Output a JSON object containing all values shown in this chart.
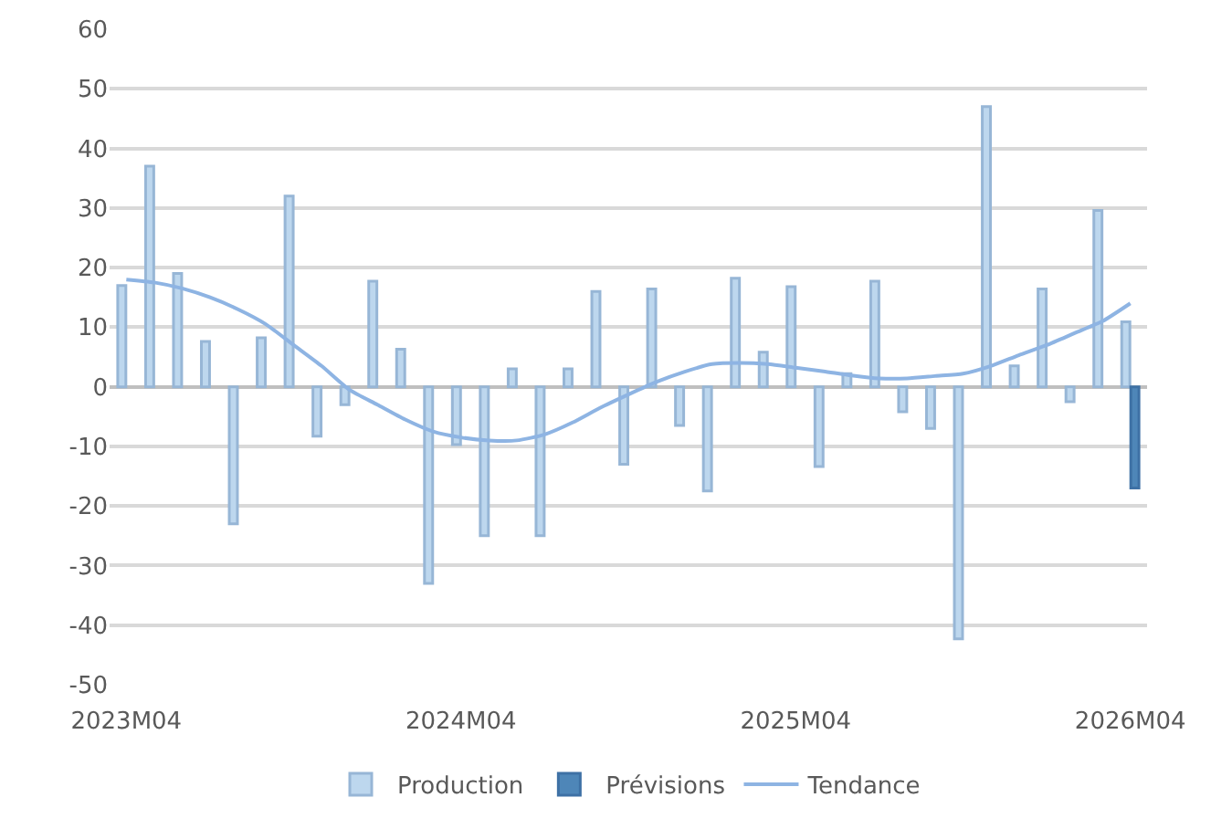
{
  "chart_data": {
    "type": "bar",
    "categories": [
      "2023M04",
      null,
      null,
      null,
      null,
      null,
      null,
      null,
      null,
      null,
      null,
      null,
      "2024M04",
      null,
      null,
      null,
      null,
      null,
      null,
      null,
      null,
      null,
      null,
      null,
      "2025M04",
      null,
      null,
      null,
      null,
      null,
      null,
      null,
      null,
      null,
      null,
      null,
      "2026M04"
    ],
    "series": [
      {
        "name": "Production",
        "color": "#bdd7ee",
        "values": [
          17,
          37,
          19,
          7.6,
          -23,
          8.2,
          32,
          -8.3,
          -3,
          17.7,
          6.3,
          -33,
          -9.7,
          -25,
          3,
          -25,
          3,
          16,
          -13,
          16.4,
          -6.5,
          -17.5,
          18.2,
          5.8,
          16.8,
          -13.4,
          2.2,
          17.7,
          -4.2,
          -7,
          -42.3,
          47,
          3.5,
          16.4,
          -2.5,
          29.6,
          10.9
        ]
      },
      {
        "name": "Prévisions",
        "color": "#4e86b8",
        "values": [
          null,
          null,
          null,
          null,
          null,
          null,
          null,
          null,
          null,
          null,
          null,
          null,
          null,
          null,
          null,
          null,
          null,
          null,
          null,
          null,
          null,
          null,
          null,
          null,
          null,
          null,
          null,
          null,
          null,
          null,
          null,
          null,
          null,
          null,
          null,
          null,
          -17
        ]
      },
      {
        "name": "Tendance",
        "type": "line",
        "color": "#8eb4e3",
        "values": [
          18,
          17.5,
          16.5,
          15,
          13,
          10.5,
          7,
          3.5,
          -0.5,
          -3,
          -5.5,
          -7.5,
          -8.5,
          -9,
          -9,
          -8,
          -6,
          -3.5,
          -1.3,
          0.8,
          2.5,
          3.8,
          4,
          3.8,
          3.2,
          2.6,
          1.9,
          1.4,
          1.4,
          1.8,
          2.2,
          3.5,
          5.3,
          7,
          9,
          11,
          14
        ]
      }
    ],
    "ylim": [
      -50,
      60
    ],
    "yticks": [
      -50,
      -40,
      -30,
      -20,
      -10,
      0,
      10,
      20,
      30,
      40,
      50,
      60
    ],
    "grid": "y",
    "legend": "bottom",
    "marker": "none"
  }
}
